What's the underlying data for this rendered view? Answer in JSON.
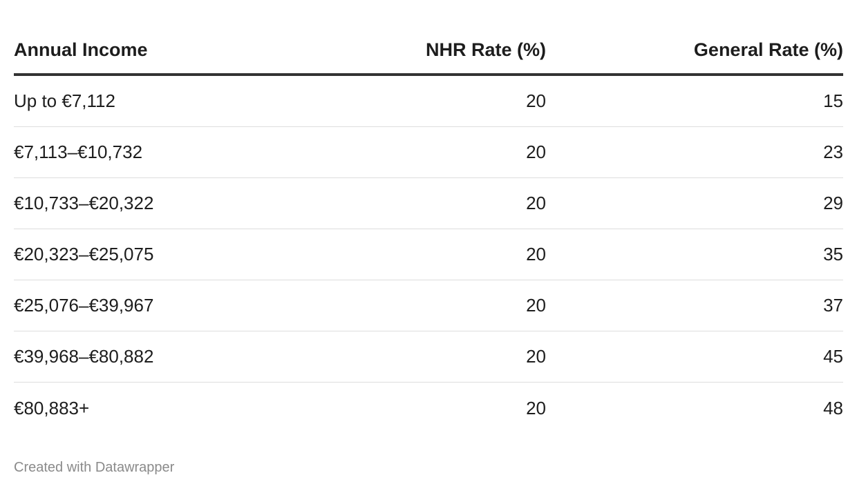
{
  "chart_data": {
    "type": "table",
    "columns": [
      "Annual Income",
      "NHR Rate (%)",
      "General Rate (%)"
    ],
    "rows": [
      {
        "income": "Up to €7,112",
        "nhr": "20",
        "general": "15"
      },
      {
        "income": "€7,113–€10,732",
        "nhr": "20",
        "general": "23"
      },
      {
        "income": "€10,733–€20,322",
        "nhr": "20",
        "general": "29"
      },
      {
        "income": "€20,323–€25,075",
        "nhr": "20",
        "general": "35"
      },
      {
        "income": "€25,076–€39,967",
        "nhr": "20",
        "general": "37"
      },
      {
        "income": "€39,968–€80,882",
        "nhr": "20",
        "general": "45"
      },
      {
        "income": "€80,883+",
        "nhr": "20",
        "general": "48"
      }
    ]
  },
  "footer": {
    "credit": "Created with Datawrapper"
  }
}
